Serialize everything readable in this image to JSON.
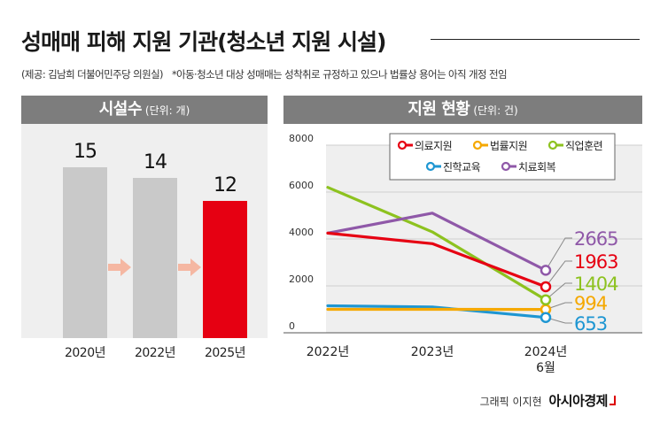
{
  "title": "성매매 피해 지원 기관(청소년 지원 시설)",
  "source_note": "(제공: 김남희 더불어민주당 의원실)",
  "footnote": "*아동·청소년 대상 성매매는 성착취로 규정하고 있으나 법률상 용어는 아직 개정 전임",
  "credit": {
    "author": "그래픽 이지현",
    "brand": "아시아경제"
  },
  "left_panel": {
    "title": "시설수",
    "unit": "(단위: 개)"
  },
  "right_panel": {
    "title": "지원 현황",
    "unit": "(단위: 건)"
  },
  "colors": {
    "bar_gray": "#c9c9c9",
    "bar_red": "#e60012",
    "arrow": "#f5b7a2",
    "panel_head": "#7d7d7d",
    "shade": "#efefef"
  },
  "chart_data": [
    {
      "type": "bar",
      "title": "시설수",
      "unit": "(단위: 개)",
      "categories": [
        "2020년",
        "2022년",
        "2025년"
      ],
      "values": [
        15,
        14,
        12
      ],
      "highlight_index": 2,
      "ylim": [
        0,
        16
      ]
    },
    {
      "type": "line",
      "title": "지원 현황",
      "unit": "(단위: 건)",
      "x": [
        "2022년",
        "2023년",
        "2024년 6월"
      ],
      "ylim": [
        0,
        8000
      ],
      "yticks": [
        0,
        2000,
        4000,
        6000,
        8000
      ],
      "ytick_labels": [
        "0",
        "2000",
        "4000",
        "6000",
        "8000"
      ],
      "legend_position": "top-right",
      "series": [
        {
          "name": "의료지원",
          "color": "#e60012",
          "values": [
            4250,
            3800,
            1963
          ],
          "end_label": "1963"
        },
        {
          "name": "법률지원",
          "color": "#f5a800",
          "values": [
            1000,
            1000,
            994
          ],
          "end_label": "994"
        },
        {
          "name": "직업훈련",
          "color": "#8dc21f",
          "values": [
            6200,
            4300,
            1404
          ],
          "end_label": "1404"
        },
        {
          "name": "진학교육",
          "color": "#1e96d2",
          "values": [
            1150,
            1100,
            653
          ],
          "end_label": "653"
        },
        {
          "name": "치료회복",
          "color": "#8f58a8",
          "values": [
            4250,
            5100,
            2665
          ],
          "end_label": "2665"
        }
      ]
    }
  ]
}
